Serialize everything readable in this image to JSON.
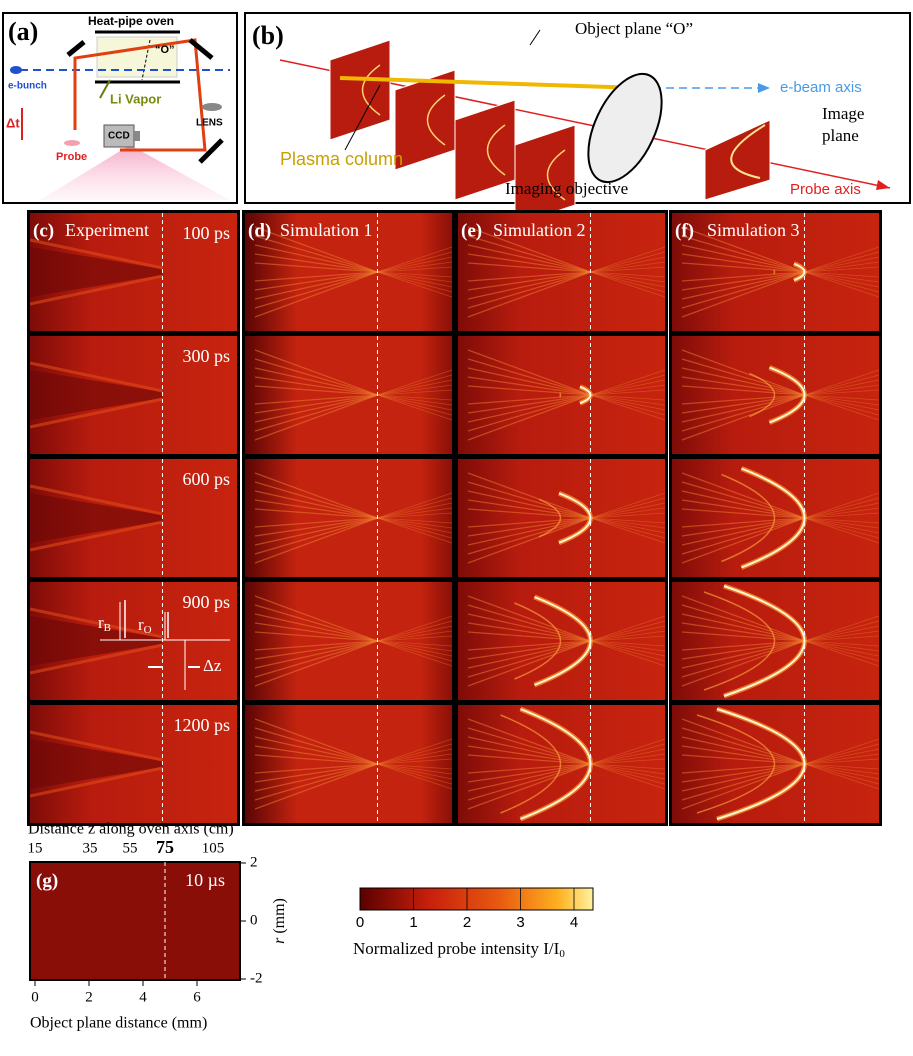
{
  "panel_a": {
    "label": "(a)",
    "title": "Heat-pipe oven",
    "object": "“O”",
    "ebunch": "e-bunch",
    "vapor": "Li Vapor",
    "dt": "Δt",
    "probe": "Probe",
    "ccd": "CCD",
    "lens": "LENS"
  },
  "panel_b": {
    "label": "(b)",
    "object_plane": "Object plane “O”",
    "ebeam": "e-beam axis",
    "plasma": "Plasma column",
    "image_plane": [
      "Image",
      "plane"
    ],
    "objective": "Imaging objective",
    "probe_axis": "Probe axis"
  },
  "columns": [
    {
      "label": "(c)",
      "title": "Experiment"
    },
    {
      "label": "(d)",
      "title": "Simulation 1"
    },
    {
      "label": "(e)",
      "title": "Simulation 2"
    },
    {
      "label": "(f)",
      "title": "Simulation 3"
    }
  ],
  "times": [
    "100 ps",
    "300 ps",
    "600 ps",
    "900 ps",
    "1200 ps"
  ],
  "annotations": {
    "rb": "r",
    "rb_sub": "B",
    "ro": "r",
    "ro_sub": "O",
    "dz": "Δz"
  },
  "panel_g": {
    "label": "(g)",
    "time": "10 µs",
    "top_axis_title": "Distance z along oven axis (cm)",
    "top_ticks": [
      15,
      35,
      55,
      75,
      105
    ],
    "r_symbol": "r",
    "r_unit": "(mm)",
    "right_ticks": [
      2,
      0,
      -2
    ],
    "bottom_ticks": [
      0,
      2,
      4,
      6
    ],
    "bottom_axis_title": "Object plane distance (mm)"
  },
  "colorbar": {
    "ticks": [
      0,
      1,
      2,
      3,
      4
    ],
    "label": "Normalized probe intensity I/I",
    "label_sub": "0"
  }
}
